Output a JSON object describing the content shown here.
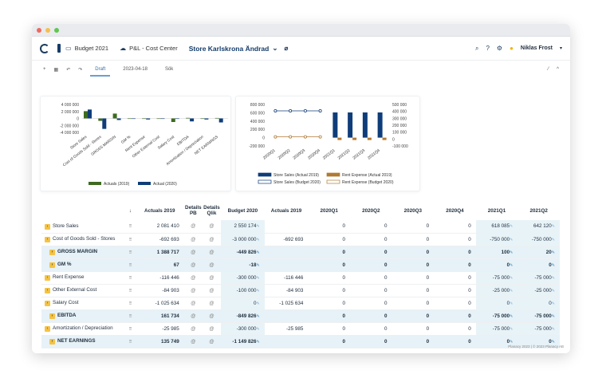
{
  "header": {
    "app": "Budget 2021",
    "module": "P&L - Cost Center",
    "store": "Store Karlskrona Ändrad",
    "user": "Niklas Frost"
  },
  "toolbar": {
    "tab_draft": "Draft",
    "tab_date": "2023-04-18",
    "tab_search": "Sök"
  },
  "chart1": {
    "type": "bar",
    "yticks": [
      "4 000 000",
      "2 000 000",
      "0",
      "-2 000 000",
      "-4 000 000"
    ],
    "categories": [
      "Store Sales",
      "Cost of Goods Sold - Stores",
      "GROSS MARGIN",
      "GM %",
      "Rent Expense",
      "Other External Cost",
      "Salary Cost",
      "EBITDA",
      "Amortization / Depreciation",
      "NET EARNINGS"
    ],
    "series": [
      {
        "name": "Actuals (2019)",
        "color": "#3d6b1f",
        "values": [
          2081410,
          -692693,
          1388717,
          67,
          -116446,
          -84903,
          -1025634,
          161734,
          -25985,
          135749
        ]
      },
      {
        "name": "Actual (2020)",
        "color": "#0f3d7a",
        "values": [
          2550174,
          -3000000,
          -449826,
          -18,
          -300000,
          -100000,
          0,
          -849826,
          -300000,
          -1149826
        ]
      }
    ]
  },
  "chart2": {
    "type": "bar+line",
    "yleft": [
      "800 000",
      "600 000",
      "400 000",
      "200 000",
      "0",
      "-200 000"
    ],
    "yright": [
      "500 000",
      "400 000",
      "300 000",
      "200 000",
      "100 000",
      "0",
      "-100 000"
    ],
    "categories": [
      "2020Q1",
      "2020Q2",
      "2020Q3",
      "2020Q4",
      "2021Q1",
      "2021Q2",
      "2021Q3",
      "2021Q4"
    ],
    "legend": [
      "Store Sales (Actual 2019)",
      "Store Sales (Budget 2020)",
      "Rent Expense (Actual 2019)",
      "Rent Expense (Budget 2020)"
    ]
  },
  "columns": [
    "Actuals 2019",
    "Details PB",
    "Details Qlik",
    "Budget 2020",
    "Actuals 2019",
    "2020Q1",
    "2020Q2",
    "2020Q3",
    "2020Q4",
    "2021Q1",
    "2021Q2"
  ],
  "rows": [
    {
      "label": "Store Sales",
      "a19": "2 081 410",
      "b20": "2 550 174",
      "a19b": "",
      "q": [
        "0",
        "0",
        "0",
        "0"
      ],
      "q21": [
        "618 085",
        "642 120"
      ],
      "bold": false
    },
    {
      "label": "Cost of Goods Sold - Stores",
      "a19": "-692 693",
      "b20": "-3 000 000",
      "a19b": "-692 693",
      "q": [
        "0",
        "0",
        "0",
        "0"
      ],
      "q21": [
        "-750 000",
        "-750 000"
      ],
      "bold": false
    },
    {
      "label": "GROSS MARGIN",
      "a19": "1 388 717",
      "b20": "-449 826",
      "a19b": "",
      "q": [
        "0",
        "0",
        "0",
        "0"
      ],
      "q21": [
        "100",
        "20"
      ],
      "bold": true
    },
    {
      "label": "GM %",
      "a19": "67",
      "b20": "-18",
      "a19b": "",
      "q": [
        "0",
        "0",
        "0",
        "0"
      ],
      "q21": [
        "0",
        "0"
      ],
      "bold": true
    },
    {
      "label": "Rent Expense",
      "a19": "-116 446",
      "b20": "-300 000",
      "a19b": "-116 446",
      "q": [
        "0",
        "0",
        "0",
        "0"
      ],
      "q21": [
        "-75 000",
        "-75 000"
      ],
      "bold": false
    },
    {
      "label": "Other External Cost",
      "a19": "-84 903",
      "b20": "-100 000",
      "a19b": "-84 903",
      "q": [
        "0",
        "0",
        "0",
        "0"
      ],
      "q21": [
        "-25 000",
        "-25 000"
      ],
      "bold": false
    },
    {
      "label": "Salary Cost",
      "a19": "-1 025 634",
      "b20": "0",
      "a19b": "-1 025 634",
      "q": [
        "0",
        "0",
        "0",
        "0"
      ],
      "q21": [
        "0",
        "0"
      ],
      "bold": false
    },
    {
      "label": "EBITDA",
      "a19": "161 734",
      "b20": "-849 826",
      "a19b": "",
      "q": [
        "0",
        "0",
        "0",
        "0"
      ],
      "q21": [
        "-75 000",
        "-75 000"
      ],
      "bold": true
    },
    {
      "label": "Amortization / Depreciation",
      "a19": "-25 985",
      "b20": "-300 000",
      "a19b": "-25 985",
      "q": [
        "0",
        "0",
        "0",
        "0"
      ],
      "q21": [
        "-75 000",
        "-75 000"
      ],
      "bold": false
    },
    {
      "label": "NET EARNINGS",
      "a19": "135 749",
      "b20": "-1 149 826",
      "a19b": "",
      "q": [
        "0",
        "0",
        "0",
        "0"
      ],
      "q21": [
        "0",
        "0"
      ],
      "bold": true
    }
  ],
  "footer": "Planacy 2023 | © 2023 Planacy AB"
}
